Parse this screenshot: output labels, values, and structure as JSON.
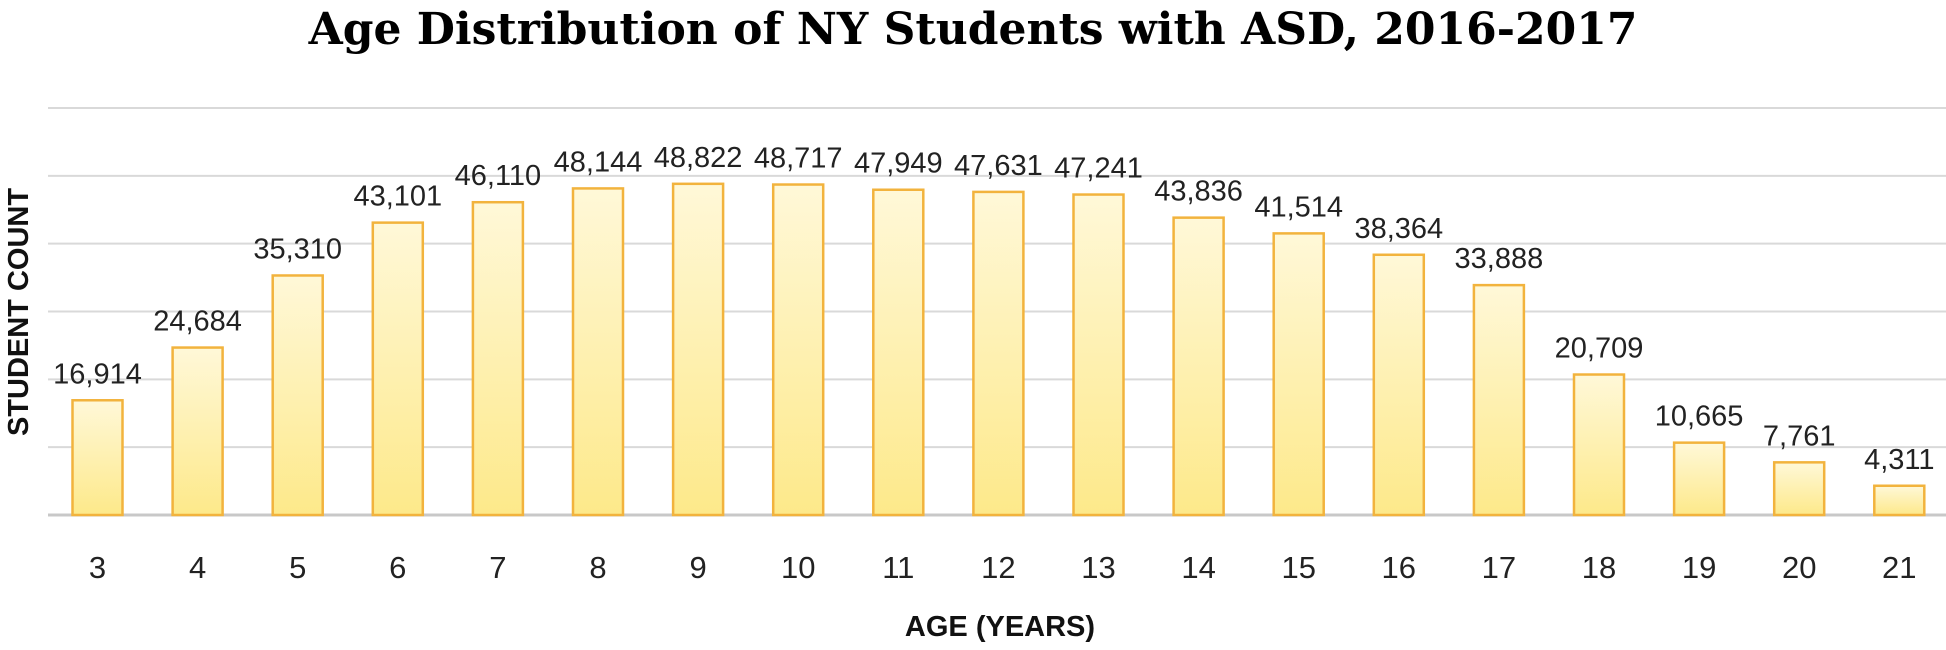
{
  "chart_data": {
    "type": "bar",
    "title": "Age Distribution of NY Students with ASD, 2016-2017",
    "xlabel": "AGE  (YEARS)",
    "ylabel": "STUDENT COUNT",
    "categories": [
      "3",
      "4",
      "5",
      "6",
      "7",
      "8",
      "9",
      "10",
      "11",
      "12",
      "13",
      "14",
      "15",
      "16",
      "17",
      "18",
      "19",
      "20",
      "21"
    ],
    "values": [
      16914,
      24684,
      35310,
      43101,
      46110,
      48144,
      48822,
      48717,
      47949,
      47631,
      47241,
      43836,
      41514,
      38364,
      33888,
      20709,
      10665,
      7761,
      4311
    ],
    "data_labels": [
      "16,914",
      "24,684",
      "35,310",
      "43,101",
      "46,110",
      "48,144",
      "48,822",
      "48,717",
      "47,949",
      "47,631",
      "47,241",
      "43,836",
      "41,514",
      "38,364",
      "33,888",
      "20,709",
      "10,665",
      "7,761",
      "4,311"
    ],
    "ylim": [
      0,
      60000
    ],
    "y_gridlines": [
      10000,
      20000,
      30000,
      40000,
      50000,
      60000
    ],
    "y_tick_labels_shown": false,
    "grid": true,
    "legend": "none",
    "colors": {
      "bar_fill_top": "#fff8d8",
      "bar_fill_bottom": "#fde98a",
      "bar_stroke": "#f2b33d",
      "grid": "#d9d9d9",
      "axis": "#c8c8c8"
    }
  }
}
